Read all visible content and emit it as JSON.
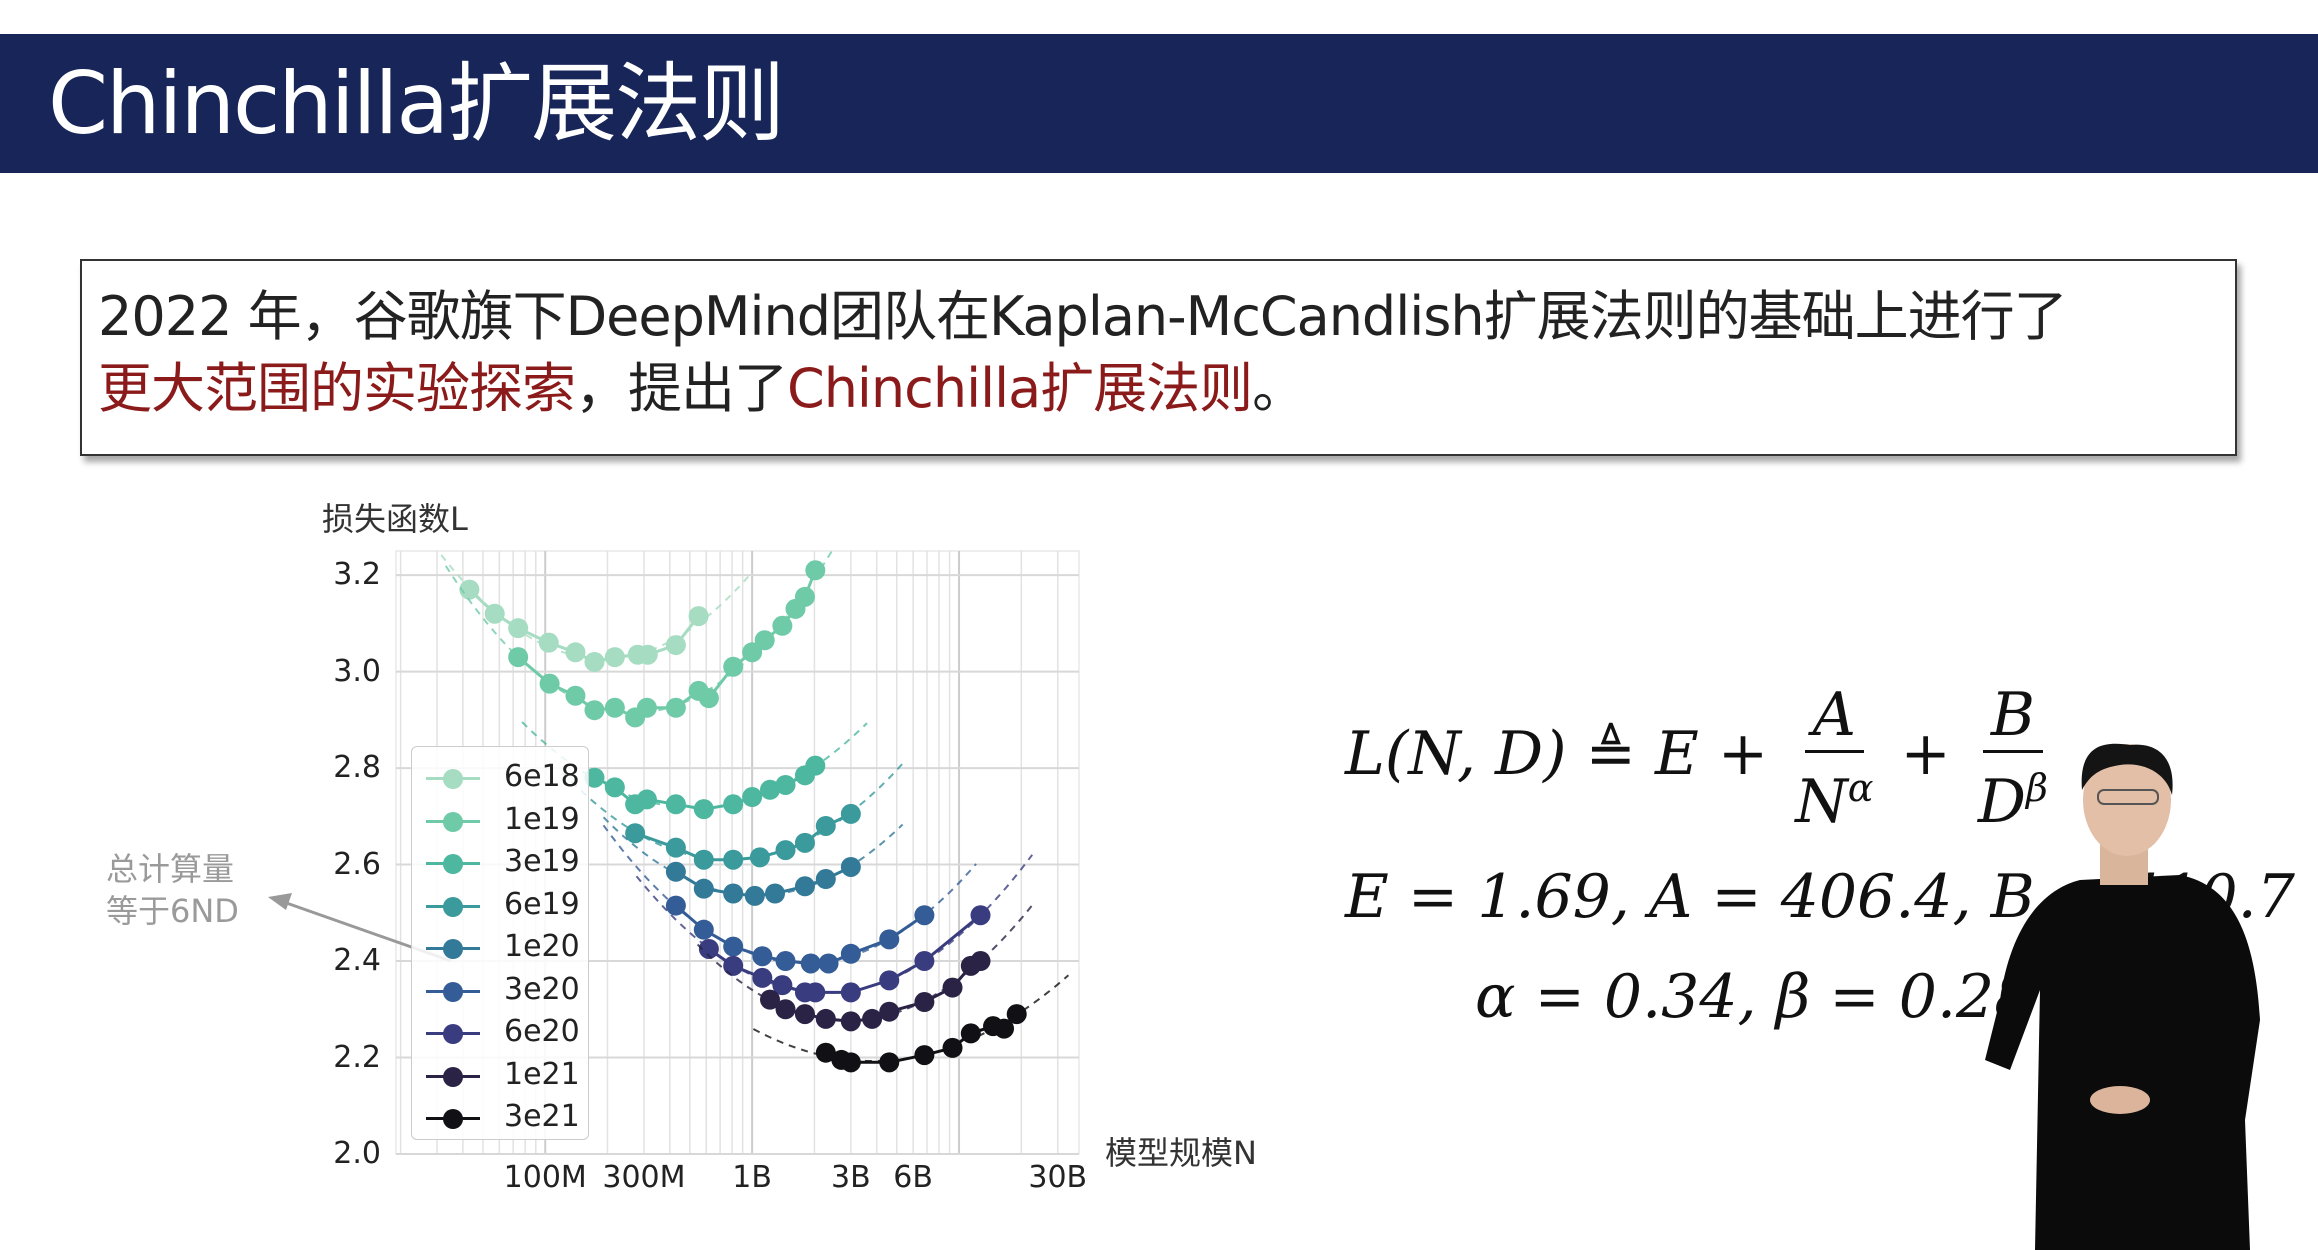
{
  "header": {
    "title": "Chinchilla扩展法则"
  },
  "intro": {
    "line1": "2022 年，谷歌旗下DeepMind团队在Kaplan-McCandlish扩展法则的基础上进行了",
    "line2_red1": "更大范围的实验探索",
    "line2_black": "，提出了",
    "line2_red2": "Chinchilla扩展法则",
    "line2_end": "。"
  },
  "annotation": {
    "line1": "总计算量",
    "line2": "等于6ND"
  },
  "formula": {
    "lhs": "L(N, D)",
    "defeq": "≜",
    "e": "E",
    "plus": "+",
    "a": "A",
    "n": "N",
    "alpha": "α",
    "b": "B",
    "d": "D",
    "beta": "β",
    "params1": "E = 1.69, A = 406.4, B = 410.7",
    "params2": "α = 0.34, β = 0.28"
  },
  "colors": {
    "header_bg": "#172558",
    "highlight_red": "#8b1a1a"
  },
  "chart_data": {
    "type": "line",
    "ylabel": "损失函数L",
    "xlabel": "模型规模N",
    "x_scale": "log",
    "xlim": [
      19000000,
      38000000000
    ],
    "ylim": [
      2.0,
      3.25
    ],
    "grid": true,
    "legend_placement": "left",
    "x_ticks": [
      {
        "value": 100000000,
        "label": "100M"
      },
      {
        "value": 300000000,
        "label": "300M"
      },
      {
        "value": 1000000000,
        "label": "1B"
      },
      {
        "value": 3000000000,
        "label": "3B"
      },
      {
        "value": 6000000000,
        "label": "6B"
      },
      {
        "value": 30000000000,
        "label": "30B"
      }
    ],
    "y_ticks": [
      {
        "value": 2.0,
        "label": "2.0"
      },
      {
        "value": 2.2,
        "label": "2.2"
      },
      {
        "value": 2.4,
        "label": "2.4"
      },
      {
        "value": 2.6,
        "label": "2.6"
      },
      {
        "value": 2.8,
        "label": "2.8"
      },
      {
        "value": 3.0,
        "label": "3.0"
      },
      {
        "value": 3.2,
        "label": "3.2"
      }
    ],
    "series": [
      {
        "name": "6e18",
        "color": "#a6dcc1",
        "points": [
          [
            43000000.0,
            3.17
          ],
          [
            57000000.0,
            3.12
          ],
          [
            74000000.0,
            3.09
          ],
          [
            104000000.0,
            3.06
          ],
          [
            140000000.0,
            3.04
          ],
          [
            173000000.0,
            3.02
          ],
          [
            217000000.0,
            3.03
          ],
          [
            280000000.0,
            3.035
          ],
          [
            313000000.0,
            3.035
          ],
          [
            428000000.0,
            3.055
          ],
          [
            551000000.0,
            3.115
          ]
        ]
      },
      {
        "name": "1e19",
        "color": "#6fcaa8",
        "points": [
          [
            74000000.0,
            3.03
          ],
          [
            105000000.0,
            2.975
          ],
          [
            140000000.0,
            2.95
          ],
          [
            173000000.0,
            2.92
          ],
          [
            217000000.0,
            2.925
          ],
          [
            272000000.0,
            2.905
          ],
          [
            310000000.0,
            2.925
          ],
          [
            428000000.0,
            2.925
          ],
          [
            551000000.0,
            2.96
          ],
          [
            618000000.0,
            2.945
          ],
          [
            810000000.0,
            3.01
          ],
          [
            1000000000.0,
            3.04
          ],
          [
            1150000000.0,
            3.065
          ],
          [
            1400000000.0,
            3.095
          ],
          [
            1620000000.0,
            3.13
          ],
          [
            1800000000.0,
            3.155
          ],
          [
            2020000000.0,
            3.21
          ]
        ]
      },
      {
        "name": "3e19",
        "color": "#4db7a0",
        "points": [
          [
            173000000.0,
            2.78
          ],
          [
            217000000.0,
            2.76
          ],
          [
            272000000.0,
            2.725
          ],
          [
            310000000.0,
            2.735
          ],
          [
            428000000.0,
            2.725
          ],
          [
            584000000.0,
            2.715
          ],
          [
            810000000.0,
            2.725
          ],
          [
            1000000000.0,
            2.74
          ],
          [
            1220000000.0,
            2.755
          ],
          [
            1450000000.0,
            2.765
          ],
          [
            1800000000.0,
            2.785
          ],
          [
            2020000000.0,
            2.805
          ]
        ]
      },
      {
        "name": "6e19",
        "color": "#3a9a9c",
        "points": [
          [
            272000000.0,
            2.665
          ],
          [
            428000000.0,
            2.635
          ],
          [
            584000000.0,
            2.61
          ],
          [
            810000000.0,
            2.61
          ],
          [
            1090000000.0,
            2.615
          ],
          [
            1450000000.0,
            2.63
          ],
          [
            1800000000.0,
            2.645
          ],
          [
            2270000000.0,
            2.68
          ],
          [
            3000000000.0,
            2.705
          ]
        ]
      },
      {
        "name": "1e20",
        "color": "#327a98",
        "points": [
          [
            428000000.0,
            2.585
          ],
          [
            584000000.0,
            2.55
          ],
          [
            810000000.0,
            2.54
          ],
          [
            1030000000.0,
            2.535
          ],
          [
            1290000000.0,
            2.54
          ],
          [
            1800000000.0,
            2.555
          ],
          [
            2270000000.0,
            2.57
          ],
          [
            3000000000.0,
            2.595
          ]
        ]
      },
      {
        "name": "3e20",
        "color": "#345c96",
        "points": [
          [
            428000000.0,
            2.515
          ],
          [
            584000000.0,
            2.465
          ],
          [
            810000000.0,
            2.43
          ],
          [
            1120000000.0,
            2.41
          ],
          [
            1450000000.0,
            2.4
          ],
          [
            1920000000.0,
            2.395
          ],
          [
            2340000000.0,
            2.395
          ],
          [
            3000000000.0,
            2.415
          ],
          [
            4600000000.0,
            2.445
          ],
          [
            6800000000.0,
            2.495
          ]
        ]
      },
      {
        "name": "6e20",
        "color": "#3a3c80",
        "points": [
          [
            618000000.0,
            2.425
          ],
          [
            810000000.0,
            2.39
          ],
          [
            1120000000.0,
            2.365
          ],
          [
            1400000000.0,
            2.35
          ],
          [
            1800000000.0,
            2.335
          ],
          [
            2020000000.0,
            2.335
          ],
          [
            3000000000.0,
            2.335
          ],
          [
            4600000000.0,
            2.36
          ],
          [
            6800000000.0,
            2.4
          ],
          [
            12700000000.0,
            2.495
          ]
        ]
      },
      {
        "name": "1e21",
        "color": "#2a2345",
        "points": [
          [
            1220000000.0,
            2.32
          ],
          [
            1450000000.0,
            2.3
          ],
          [
            1800000000.0,
            2.29
          ],
          [
            2270000000.0,
            2.28
          ],
          [
            3000000000.0,
            2.275
          ],
          [
            3800000000.0,
            2.28
          ],
          [
            4600000000.0,
            2.295
          ],
          [
            6800000000.0,
            2.315
          ],
          [
            9300000000.0,
            2.345
          ],
          [
            11400000000.0,
            2.39
          ],
          [
            12700000000.0,
            2.4
          ]
        ]
      },
      {
        "name": "3e21",
        "color": "#111014",
        "points": [
          [
            2270000000.0,
            2.21
          ],
          [
            2700000000.0,
            2.195
          ],
          [
            3000000000.0,
            2.19
          ],
          [
            4600000000.0,
            2.19
          ],
          [
            6800000000.0,
            2.205
          ],
          [
            9300000000.0,
            2.22
          ],
          [
            11400000000.0,
            2.25
          ],
          [
            14600000000.0,
            2.265
          ],
          [
            16500000000.0,
            2.26
          ],
          [
            19000000000.0,
            2.29
          ]
        ]
      }
    ]
  }
}
